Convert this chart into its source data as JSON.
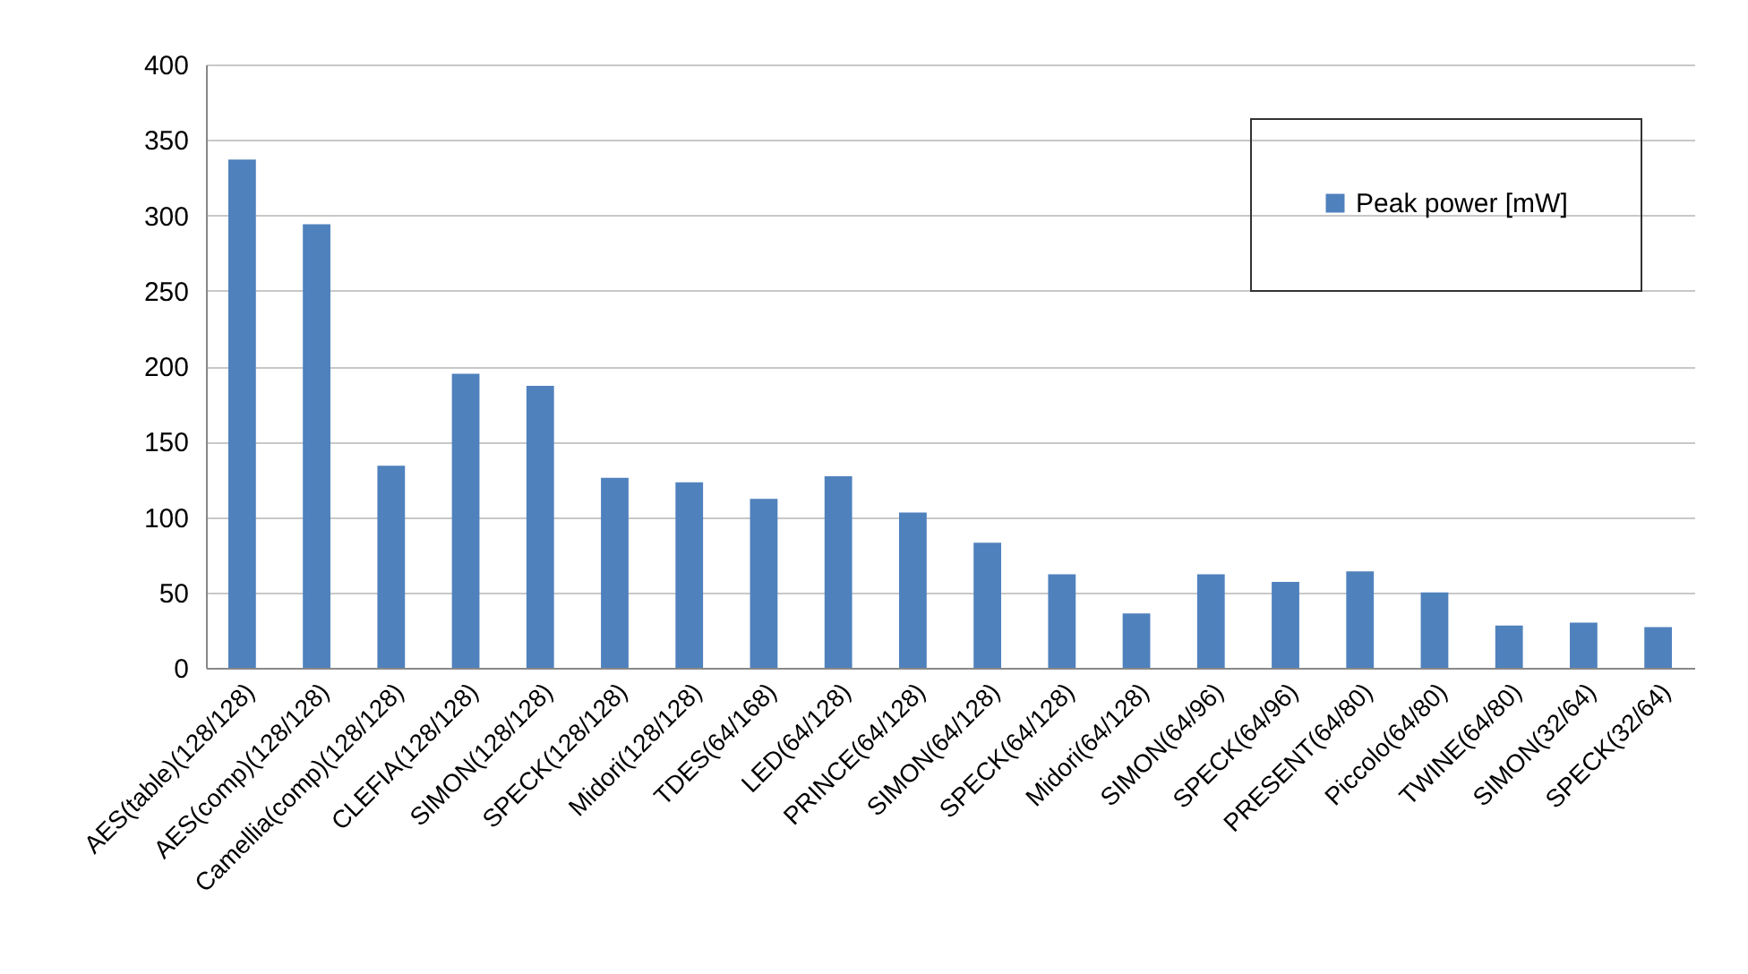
{
  "chart_data": {
    "type": "bar",
    "categories": [
      "AES(table)(128/128)",
      "AES(comp)(128/128)",
      "Camellia(comp)(128/128)",
      "CLEFIA(128/128)",
      "SIMON(128/128)",
      "SPECK(128/128)",
      "Midori(128/128)",
      "TDES(64/168)",
      "LED(64/128)",
      "PRINCE(64/128)",
      "SIMON(64/128)",
      "SPECK(64/128)",
      "Midori(64/128)",
      "SIMON(64/96)",
      "SPECK(64/96)",
      "PRESENT(64/80)",
      "Piccolo(64/80)",
      "TWINE(64/80)",
      "SIMON(32/64)",
      "SPECK(32/64)"
    ],
    "series": [
      {
        "name": "Peak power [mW]",
        "color": "#4f81bd",
        "values": [
          337,
          294,
          134,
          195,
          187,
          126,
          123,
          112,
          127,
          103,
          83,
          62,
          36,
          62,
          57,
          64,
          50,
          28,
          30,
          27
        ]
      }
    ],
    "ylim": [
      0,
      400
    ],
    "yticks": [
      0,
      50,
      100,
      150,
      200,
      250,
      300,
      350,
      400
    ],
    "grid": "y",
    "legend": "top right"
  }
}
